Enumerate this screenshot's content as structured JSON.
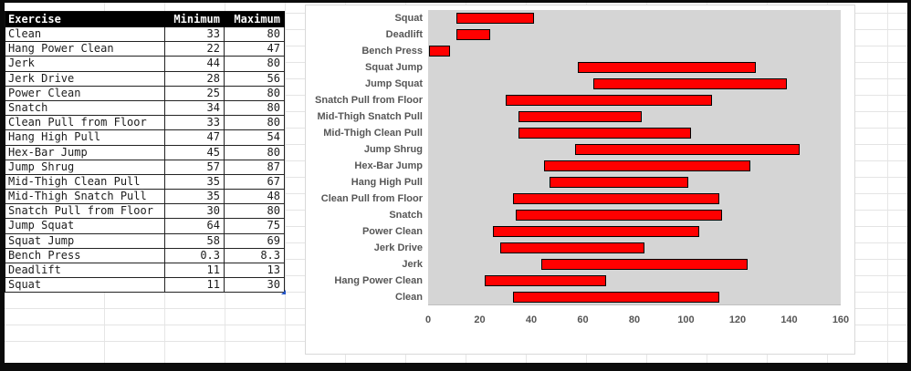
{
  "table": {
    "headers": [
      "Exercise",
      "Minimum",
      "Maximum"
    ],
    "header_bg": "#000000",
    "header_text_color": "#ffffff",
    "rows": [
      {
        "exercise": "Clean",
        "min": "33",
        "max": "80"
      },
      {
        "exercise": "Hang Power Clean",
        "min": "22",
        "max": "47"
      },
      {
        "exercise": "Jerk",
        "min": "44",
        "max": "80"
      },
      {
        "exercise": "Jerk Drive",
        "min": "28",
        "max": "56"
      },
      {
        "exercise": "Power Clean",
        "min": "25",
        "max": "80"
      },
      {
        "exercise": "Snatch",
        "min": "34",
        "max": "80"
      },
      {
        "exercise": "Clean Pull from Floor",
        "min": "33",
        "max": "80"
      },
      {
        "exercise": "Hang High Pull",
        "min": "47",
        "max": "54"
      },
      {
        "exercise": "Hex-Bar Jump",
        "min": "45",
        "max": "80"
      },
      {
        "exercise": "Jump Shrug",
        "min": "57",
        "max": "87"
      },
      {
        "exercise": "Mid-Thigh Clean Pull",
        "min": "35",
        "max": "67"
      },
      {
        "exercise": "Mid-Thigh Snatch Pull",
        "min": "35",
        "max": "48"
      },
      {
        "exercise": "Snatch Pull from Floor",
        "min": "30",
        "max": "80"
      },
      {
        "exercise": "Jump Squat",
        "min": "64",
        "max": "75"
      },
      {
        "exercise": "Squat Jump",
        "min": "58",
        "max": "69"
      },
      {
        "exercise": "Bench Press",
        "min": "0.3",
        "max": "8.3"
      },
      {
        "exercise": "Deadlift",
        "min": "11",
        "max": "13"
      },
      {
        "exercise": "Squat",
        "min": "11",
        "max": "30"
      }
    ]
  },
  "chart_data": {
    "type": "bar",
    "orientation": "horizontal",
    "title": "",
    "xlabel": "",
    "ylabel": "",
    "xlim": [
      0,
      160
    ],
    "x_ticks": [
      0,
      20,
      40,
      60,
      80,
      100,
      120,
      140,
      160
    ],
    "grid": false,
    "legend": "none",
    "plot_bg": "#d5d5d5",
    "bar_color": "#ff0000",
    "bar_border_color": "#000000",
    "representation": "floating range bars: each bar spans from Minimum to Minimum+Maximum (stacked bar with hidden base series)",
    "categories": [
      "Squat",
      "Deadlift",
      "Bench Press",
      "Squat Jump",
      "Jump Squat",
      "Snatch Pull from Floor",
      "Mid-Thigh Snatch Pull",
      "Mid-Thigh Clean Pull",
      "Jump Shrug",
      "Hex-Bar Jump",
      "Hang High Pull",
      "Clean Pull from Floor",
      "Snatch",
      "Power Clean",
      "Jerk Drive",
      "Jerk",
      "Hang Power Clean",
      "Clean"
    ],
    "series": [
      {
        "name": "Minimum (hidden base)",
        "values": [
          11,
          11,
          0.3,
          58,
          64,
          30,
          35,
          35,
          57,
          45,
          47,
          33,
          34,
          25,
          28,
          44,
          22,
          33
        ]
      },
      {
        "name": "Maximum (visible bar length)",
        "values": [
          30,
          13,
          8.3,
          69,
          75,
          80,
          48,
          67,
          87,
          80,
          54,
          80,
          80,
          80,
          56,
          80,
          47,
          80
        ]
      }
    ]
  }
}
